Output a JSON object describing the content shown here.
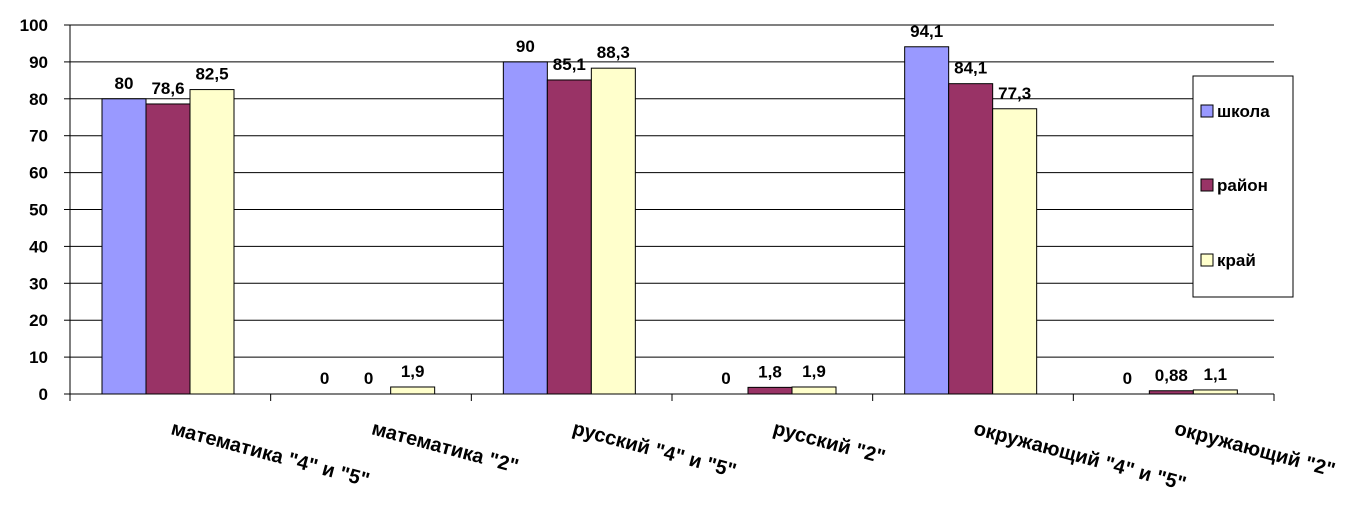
{
  "chart_data": {
    "type": "bar",
    "categories": [
      "математика \"4\" и \"5\"",
      "математика \"2\"",
      "русский \"4\" и \"5\"",
      "русский \"2\"",
      "окружающий \"4\" и \"5\"",
      "окружающий \"2\""
    ],
    "series": [
      {
        "name": "школа",
        "color": "#9999ff",
        "values": [
          80,
          0,
          90,
          0,
          94.1,
          0
        ],
        "labels": [
          "80",
          "0",
          "90",
          "0",
          "94,1",
          "0"
        ]
      },
      {
        "name": "район",
        "color": "#993366",
        "values": [
          78.6,
          0,
          85.1,
          1.8,
          84.1,
          0.88
        ],
        "labels": [
          "78,6",
          "0",
          "85,1",
          "1,8",
          "84,1",
          "0,88"
        ]
      },
      {
        "name": "край",
        "color": "#ffffcc",
        "values": [
          82.5,
          1.9,
          88.3,
          1.9,
          77.3,
          1.1
        ],
        "labels": [
          "82,5",
          "1,9",
          "88,3",
          "1,9",
          "77,3",
          "1,1"
        ]
      }
    ],
    "ylim": [
      0,
      100
    ],
    "yticks": [
      "0",
      "10",
      "20",
      "30",
      "40",
      "50",
      "60",
      "70",
      "80",
      "90",
      "100"
    ],
    "grid": true,
    "legend_position": "right",
    "title": "",
    "xlabel": "",
    "ylabel": ""
  }
}
